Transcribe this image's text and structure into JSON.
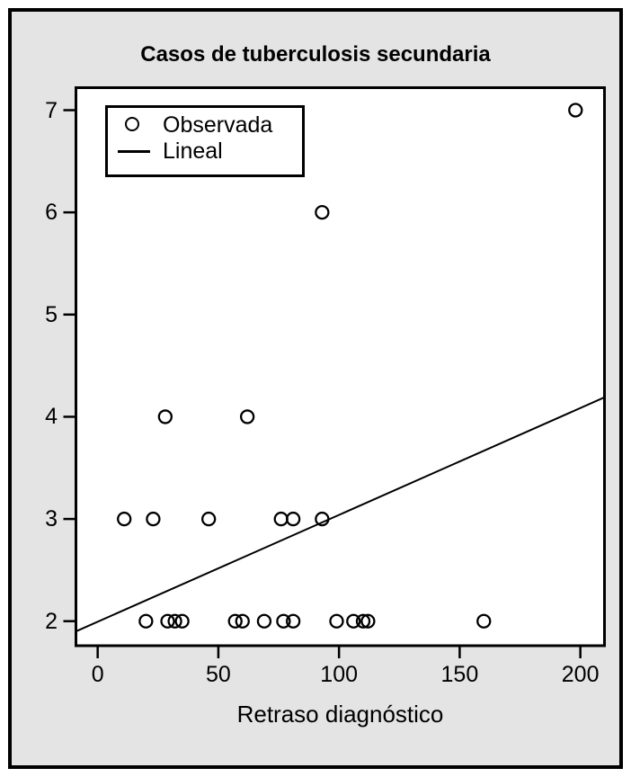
{
  "window": {
    "background_color": "#e4e4e4",
    "frame_color": "#000000",
    "plot_background": "#ffffff"
  },
  "chart_data": {
    "type": "scatter",
    "title": "Casos de tuberculosis secundaria",
    "xlabel": "Retraso diagnóstico",
    "ylabel": "",
    "xlim": [
      -9,
      210
    ],
    "ylim": [
      1.76,
      7.22
    ],
    "xticks": [
      0,
      50,
      100,
      150,
      200
    ],
    "yticks": [
      7,
      6,
      5,
      4,
      3,
      2
    ],
    "grid": false,
    "marker": {
      "shape": "open-circle",
      "color": "#000000"
    },
    "legend": {
      "position": "top-left",
      "entries": [
        {
          "marker": "circle",
          "label": "Observada"
        },
        {
          "marker": "line",
          "label": "Lineal"
        }
      ]
    },
    "series": [
      {
        "name": "Observada",
        "type": "scatter",
        "points": [
          [
            198,
            7
          ],
          [
            93,
            6
          ],
          [
            28,
            4
          ],
          [
            62,
            4
          ],
          [
            11,
            3
          ],
          [
            23,
            3
          ],
          [
            46,
            3
          ],
          [
            76,
            3
          ],
          [
            81,
            3
          ],
          [
            93,
            3
          ],
          [
            20,
            2
          ],
          [
            29,
            2
          ],
          [
            32,
            2
          ],
          [
            35,
            2
          ],
          [
            57,
            2
          ],
          [
            60,
            2
          ],
          [
            69,
            2
          ],
          [
            77,
            2
          ],
          [
            81,
            2
          ],
          [
            99,
            2
          ],
          [
            106,
            2
          ],
          [
            110,
            2
          ],
          [
            112,
            2
          ],
          [
            160,
            2
          ]
        ]
      },
      {
        "name": "Lineal",
        "type": "line",
        "equation": "y = 1.99 + 0.0105x",
        "endpoints": [
          [
            -9,
            1.9
          ],
          [
            210,
            4.19
          ]
        ]
      }
    ]
  }
}
